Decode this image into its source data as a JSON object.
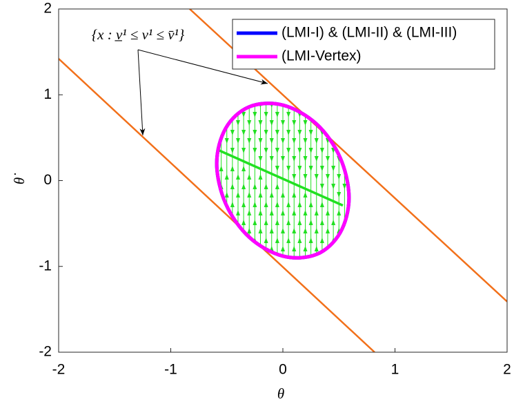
{
  "chart_data": {
    "type": "phase",
    "xlabel": "θ",
    "ylabel": "θ̇",
    "xlim": [
      -2,
      2
    ],
    "ylim": [
      -2,
      2
    ],
    "xticks": [
      -2,
      -1,
      0,
      1,
      2
    ],
    "yticks": [
      -2,
      -1,
      0,
      1,
      2
    ],
    "legend": "upper right",
    "annotation": "{x : v̲¹ ≤ v¹ ≤ v̄¹}",
    "series": [
      {
        "name": "(LMI-I) & (LMI-II) & (LMI-III)",
        "color": "#0000ff",
        "x": [
          0.59,
          0.51,
          0.3,
          0,
          -0.3,
          -0.51,
          -0.59,
          -0.51,
          -0.3,
          0,
          0.3,
          0.51
        ],
        "y": [
          -0.2,
          0.27,
          0.66,
          0.88,
          0.86,
          0.61,
          0.2,
          -0.27,
          -0.66,
          -0.88,
          -0.86,
          -0.61
        ]
      },
      {
        "name": "(LMI-Vertex)",
        "color": "#ff00ff",
        "x": [
          0.59,
          0.51,
          0.3,
          0,
          -0.3,
          -0.51,
          -0.59,
          -0.51,
          -0.3,
          0,
          0.3,
          0.51
        ],
        "y": [
          -0.2,
          0.27,
          0.66,
          0.88,
          0.86,
          0.61,
          0.2,
          -0.27,
          -0.66,
          -0.88,
          -0.86,
          -0.61
        ]
      }
    ],
    "bounds": {
      "color": "#f2701a",
      "lines": [
        {
          "x": [
            -0.831,
            2
          ],
          "y": [
            2,
            -1.41
          ]
        },
        {
          "x": [
            -2,
            0.818
          ],
          "y": [
            1.42,
            -2
          ]
        }
      ]
    },
    "trajectory": {
      "color": "#22e022",
      "x": [
        -0.566,
        0.535
      ],
      "y": [
        0.35,
        -0.29
      ]
    },
    "field_x": [
      -0.55,
      -0.5,
      -0.45,
      -0.4,
      -0.35,
      -0.3,
      -0.25,
      -0.2,
      -0.15,
      -0.1,
      -0.05,
      0,
      0.05,
      0.1,
      0.15,
      0.2,
      0.25,
      0.3,
      0.35,
      0.4,
      0.45,
      0.5,
      0.55
    ]
  }
}
